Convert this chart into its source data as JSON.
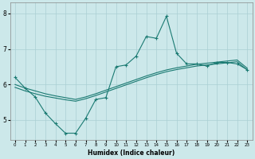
{
  "xlabel": "Humidex (Indice chaleur)",
  "background_color": "#cce8ea",
  "grid_color": "#aacfd4",
  "line_color": "#1a7a72",
  "xlim": [
    -0.5,
    23.5
  ],
  "ylim": [
    4.45,
    8.3
  ],
  "yticks": [
    5,
    6,
    7,
    8
  ],
  "xticks": [
    0,
    1,
    2,
    3,
    4,
    5,
    6,
    7,
    8,
    9,
    10,
    11,
    12,
    13,
    14,
    15,
    16,
    17,
    18,
    19,
    20,
    21,
    22,
    23
  ],
  "line1_x": [
    0,
    1,
    2,
    3,
    4,
    5,
    6,
    7,
    8,
    9,
    10,
    11,
    12,
    13,
    14,
    15,
    16,
    17,
    18,
    19,
    20,
    21,
    22,
    23
  ],
  "line1_y": [
    6.2,
    5.9,
    5.65,
    5.2,
    4.9,
    4.63,
    4.63,
    5.05,
    5.58,
    5.63,
    6.5,
    6.55,
    6.8,
    7.35,
    7.3,
    7.92,
    6.88,
    6.58,
    6.58,
    6.52,
    6.62,
    6.62,
    6.58,
    6.42
  ],
  "line2_x": [
    0,
    1,
    2,
    3,
    4,
    5,
    6,
    7,
    8,
    9,
    10,
    11,
    12,
    13,
    14,
    15,
    16,
    17,
    18,
    19,
    20,
    21,
    22,
    23
  ],
  "line2_y": [
    6.0,
    5.9,
    5.82,
    5.74,
    5.68,
    5.63,
    5.58,
    5.65,
    5.74,
    5.84,
    5.94,
    6.04,
    6.14,
    6.24,
    6.33,
    6.41,
    6.47,
    6.52,
    6.57,
    6.6,
    6.63,
    6.66,
    6.69,
    6.46
  ],
  "line3_x": [
    0,
    1,
    2,
    3,
    4,
    5,
    6,
    7,
    8,
    9,
    10,
    11,
    12,
    13,
    14,
    15,
    16,
    17,
    18,
    19,
    20,
    21,
    22,
    23
  ],
  "line3_y": [
    5.92,
    5.82,
    5.74,
    5.67,
    5.62,
    5.57,
    5.53,
    5.6,
    5.69,
    5.79,
    5.89,
    5.99,
    6.09,
    6.19,
    6.28,
    6.36,
    6.42,
    6.47,
    6.52,
    6.55,
    6.58,
    6.61,
    6.64,
    6.41
  ]
}
